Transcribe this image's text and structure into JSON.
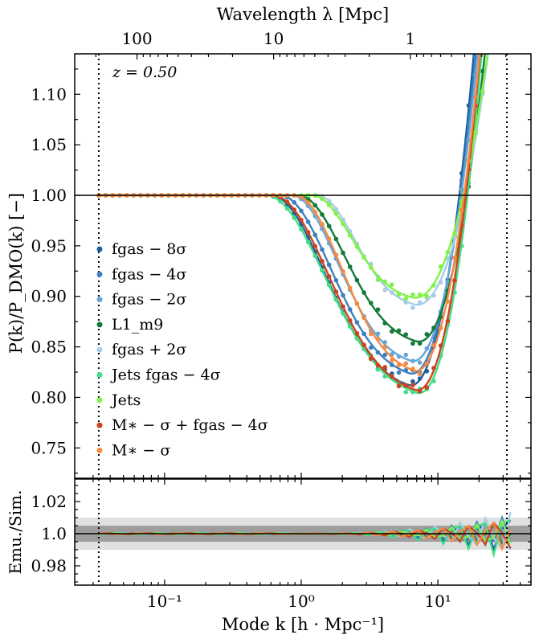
{
  "chart_data": {
    "type": "line",
    "top_axis_label": "Wavelength λ [Mpc]",
    "top_ticks": [
      "100",
      "10",
      "1"
    ],
    "x_label": "Mode k [h · Mpc⁻¹]",
    "x_ticks": [
      "10⁻¹",
      "10⁰",
      "10¹"
    ],
    "x_scale": "log",
    "xlim": [
      0.022,
      48
    ],
    "vertical_lines_k": [
      0.033,
      32
    ],
    "main": {
      "ylabel": "P(k)/P_DMO(k) [−]",
      "ylim": [
        0.72,
        1.14
      ],
      "yticks": [
        "0.75",
        "0.80",
        "0.85",
        "0.90",
        "0.95",
        "1.00",
        "1.05",
        "1.10"
      ],
      "annotation": "z = 0.50",
      "reference_line": 1.0
    },
    "ratio": {
      "ylabel": "Emu./Sim.",
      "ylim": [
        0.968,
        1.034
      ],
      "yticks": [
        "0.98",
        "1.0",
        "1.02"
      ],
      "reference_line": 1.0,
      "bands": [
        0.01,
        0.005
      ]
    },
    "legend_position": "center-left",
    "series": [
      {
        "name": "fgas − 8σ",
        "color": "#1d5fa0",
        "x0": 0.6,
        "depth": 0.195,
        "kmin": 6.0,
        "ratio_amp": 0.012
      },
      {
        "name": "fgas − 4σ",
        "color": "#3c80be",
        "x0": 0.7,
        "depth": 0.183,
        "kmin": 6.1,
        "ratio_amp": 0.011
      },
      {
        "name": "fgas − 2σ",
        "color": "#66a6d6",
        "x0": 0.85,
        "depth": 0.17,
        "kmin": 6.2,
        "ratio_amp": 0.01
      },
      {
        "name": "L1_m9",
        "color": "#147a38",
        "x0": 0.95,
        "depth": 0.15,
        "kmin": 6.8,
        "ratio_amp": 0.008
      },
      {
        "name": "fgas + 2σ",
        "color": "#a8cce6",
        "x0": 1.3,
        "depth": 0.112,
        "kmin": 6.6,
        "ratio_amp": 0.014
      },
      {
        "name": "Jets fgas − 4σ",
        "color": "#42dd86",
        "x0": 0.55,
        "depth": 0.203,
        "kmin": 6.9,
        "ratio_amp": 0.016
      },
      {
        "name": "Jets",
        "color": "#82f24a",
        "x0": 1.2,
        "depth": 0.105,
        "kmin": 6.4,
        "ratio_amp": 0.009
      },
      {
        "name": "M∗ − σ + fgas − 4σ",
        "color": "#cd431e",
        "x0": 0.62,
        "depth": 0.2,
        "kmin": 6.7,
        "ratio_amp": 0.01
      },
      {
        "name": "M∗ − σ",
        "color": "#f58a44",
        "x0": 0.9,
        "depth": 0.18,
        "kmin": 6.5,
        "ratio_amp": 0.011
      }
    ]
  }
}
